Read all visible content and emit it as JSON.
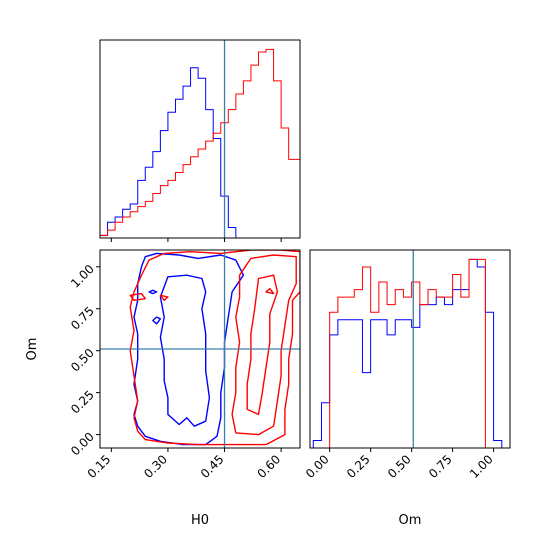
{
  "chart_data": [
    {
      "type": "histogram",
      "panel": "H0 marginal",
      "xlim": [
        0.12,
        0.65
      ],
      "truth_line": 0.45,
      "series": [
        {
          "color": "#0000ff",
          "bins": [
            0.12,
            0.14,
            0.16,
            0.18,
            0.2,
            0.22,
            0.24,
            0.26,
            0.28,
            0.3,
            0.32,
            0.34,
            0.36,
            0.38,
            0.4,
            0.42,
            0.44,
            0.46,
            0.48
          ],
          "counts": [
            1,
            6,
            8,
            11,
            13,
            22,
            27,
            33,
            41,
            48,
            53,
            58,
            65,
            61,
            49,
            38,
            16,
            4
          ]
        },
        {
          "color": "#ff0000",
          "bins": [
            0.12,
            0.14,
            0.16,
            0.18,
            0.2,
            0.22,
            0.24,
            0.26,
            0.28,
            0.3,
            0.32,
            0.34,
            0.36,
            0.38,
            0.4,
            0.42,
            0.44,
            0.46,
            0.48,
            0.5,
            0.52,
            0.54,
            0.56,
            0.58,
            0.6,
            0.62,
            0.65
          ],
          "counts": [
            1,
            3,
            6,
            8,
            10,
            12,
            14,
            17,
            20,
            22,
            25,
            28,
            31,
            34,
            37,
            40,
            44,
            49,
            55,
            60,
            66,
            71,
            72,
            60,
            42,
            30,
            12
          ]
        }
      ]
    },
    {
      "type": "contour",
      "panel": "H0 vs Om",
      "xlabel": "H0",
      "ylabel": "Om",
      "xlim": [
        0.12,
        0.65
      ],
      "ylim": [
        -0.08,
        1.1
      ],
      "xticks": [
        "0.15",
        "0.30",
        "0.45",
        "0.60"
      ],
      "yticks": [
        "0.00",
        "0.25",
        "0.50",
        "0.75",
        "1.00"
      ],
      "truth": {
        "x": 0.45,
        "y": 0.51
      },
      "series": [
        {
          "color": "#0000ff",
          "contours": [
            [
              [
                0.24,
                1.06
              ],
              [
                0.27,
                1.08
              ],
              [
                0.33,
                1.07
              ],
              [
                0.38,
                1.05
              ],
              [
                0.44,
                1.07
              ],
              [
                0.48,
                1.04
              ],
              [
                0.5,
                0.95
              ],
              [
                0.47,
                0.85
              ],
              [
                0.46,
                0.7
              ],
              [
                0.45,
                0.55
              ],
              [
                0.45,
                0.4
              ],
              [
                0.44,
                0.25
              ],
              [
                0.44,
                0.1
              ],
              [
                0.43,
                -0.01
              ],
              [
                0.4,
                -0.06
              ],
              [
                0.34,
                -0.06
              ],
              [
                0.28,
                -0.04
              ],
              [
                0.24,
                -0.01
              ],
              [
                0.22,
                0.05
              ],
              [
                0.21,
                0.12
              ],
              [
                0.22,
                0.2
              ],
              [
                0.21,
                0.3
              ],
              [
                0.22,
                0.45
              ],
              [
                0.22,
                0.6
              ],
              [
                0.21,
                0.7
              ],
              [
                0.22,
                0.8
              ],
              [
                0.22,
                0.9
              ],
              [
                0.23,
                1.0
              ],
              [
                0.24,
                1.06
              ]
            ],
            [
              [
                0.3,
                0.94
              ],
              [
                0.35,
                0.95
              ],
              [
                0.39,
                0.93
              ],
              [
                0.4,
                0.85
              ],
              [
                0.39,
                0.75
              ],
              [
                0.4,
                0.6
              ],
              [
                0.4,
                0.5
              ],
              [
                0.4,
                0.38
              ],
              [
                0.41,
                0.22
              ],
              [
                0.4,
                0.08
              ],
              [
                0.37,
                0.05
              ],
              [
                0.35,
                0.1
              ],
              [
                0.33,
                0.06
              ],
              [
                0.3,
                0.12
              ],
              [
                0.3,
                0.22
              ],
              [
                0.29,
                0.32
              ],
              [
                0.29,
                0.45
              ],
              [
                0.28,
                0.58
              ],
              [
                0.29,
                0.7
              ],
              [
                0.28,
                0.82
              ],
              [
                0.3,
                0.94
              ]
            ],
            [
              [
                0.26,
                0.68
              ],
              [
                0.27,
                0.7
              ],
              [
                0.28,
                0.69
              ],
              [
                0.27,
                0.66
              ],
              [
                0.26,
                0.68
              ]
            ],
            [
              [
                0.25,
                0.85
              ],
              [
                0.26,
                0.86
              ],
              [
                0.27,
                0.85
              ],
              [
                0.26,
                0.84
              ],
              [
                0.25,
                0.85
              ]
            ]
          ]
        },
        {
          "color": "#ff0000",
          "contours": [
            [
              [
                0.29,
                1.08
              ],
              [
                0.36,
                1.09
              ],
              [
                0.44,
                1.08
              ],
              [
                0.52,
                1.1
              ],
              [
                0.6,
                1.1
              ],
              [
                0.65,
                1.09
              ],
              [
                0.65,
                0.85
              ],
              [
                0.63,
                0.8
              ],
              [
                0.63,
                0.6
              ],
              [
                0.62,
                0.45
              ],
              [
                0.62,
                0.3
              ],
              [
                0.61,
                0.15
              ],
              [
                0.61,
                0.0
              ],
              [
                0.56,
                -0.06
              ],
              [
                0.47,
                -0.06
              ],
              [
                0.38,
                -0.06
              ],
              [
                0.3,
                -0.05
              ],
              [
                0.24,
                -0.03
              ],
              [
                0.22,
                0.02
              ],
              [
                0.21,
                0.1
              ],
              [
                0.22,
                0.2
              ],
              [
                0.21,
                0.35
              ],
              [
                0.2,
                0.5
              ],
              [
                0.21,
                0.62
              ],
              [
                0.2,
                0.76
              ],
              [
                0.21,
                0.85
              ],
              [
                0.23,
                0.95
              ],
              [
                0.25,
                1.04
              ],
              [
                0.29,
                1.08
              ]
            ],
            [
              [
                0.52,
                1.05
              ],
              [
                0.58,
                1.07
              ],
              [
                0.64,
                1.06
              ],
              [
                0.64,
                0.9
              ],
              [
                0.62,
                0.8
              ],
              [
                0.61,
                0.65
              ],
              [
                0.6,
                0.5
              ],
              [
                0.6,
                0.35
              ],
              [
                0.59,
                0.2
              ],
              [
                0.58,
                0.05
              ],
              [
                0.54,
                0.0
              ],
              [
                0.48,
                0.01
              ],
              [
                0.47,
                0.12
              ],
              [
                0.48,
                0.25
              ],
              [
                0.48,
                0.4
              ],
              [
                0.49,
                0.55
              ],
              [
                0.48,
                0.7
              ],
              [
                0.49,
                0.82
              ],
              [
                0.49,
                0.95
              ],
              [
                0.52,
                1.05
              ]
            ],
            [
              [
                0.54,
                0.93
              ],
              [
                0.58,
                0.95
              ],
              [
                0.59,
                0.85
              ],
              [
                0.57,
                0.72
              ],
              [
                0.57,
                0.55
              ],
              [
                0.56,
                0.4
              ],
              [
                0.55,
                0.25
              ],
              [
                0.54,
                0.12
              ],
              [
                0.51,
                0.15
              ],
              [
                0.51,
                0.3
              ],
              [
                0.52,
                0.45
              ],
              [
                0.52,
                0.6
              ],
              [
                0.53,
                0.75
              ],
              [
                0.54,
                0.93
              ]
            ],
            [
              [
                0.2,
                0.83
              ],
              [
                0.23,
                0.84
              ],
              [
                0.24,
                0.81
              ],
              [
                0.21,
                0.8
              ],
              [
                0.2,
                0.83
              ]
            ],
            [
              [
                0.28,
                0.83
              ],
              [
                0.3,
                0.82
              ],
              [
                0.29,
                0.8
              ],
              [
                0.28,
                0.83
              ]
            ],
            [
              [
                0.56,
                0.85
              ],
              [
                0.57,
                0.87
              ],
              [
                0.58,
                0.84
              ],
              [
                0.56,
                0.85
              ]
            ]
          ]
        }
      ]
    },
    {
      "type": "histogram",
      "panel": "Om marginal",
      "xlabel": "Om",
      "xlim": [
        -0.12,
        1.1
      ],
      "xticks": [
        "0.00",
        "0.25",
        "0.50",
        "0.75",
        "1.00"
      ],
      "truth_line": 0.51,
      "series": [
        {
          "color": "#0000ff",
          "bins": [
            -0.1,
            -0.05,
            0.0,
            0.05,
            0.1,
            0.15,
            0.2,
            0.25,
            0.3,
            0.35,
            0.4,
            0.45,
            0.5,
            0.55,
            0.6,
            0.65,
            0.7,
            0.75,
            0.8,
            0.85,
            0.9,
            0.95,
            1.0,
            1.05
          ],
          "counts": [
            1,
            6,
            15,
            17,
            17,
            17,
            10,
            17,
            17,
            15,
            17,
            17,
            16,
            19,
            19,
            20,
            19,
            21,
            21,
            25,
            24,
            18,
            1,
            0
          ]
        },
        {
          "color": "#ff0000",
          "bins": [
            0.0,
            0.05,
            0.1,
            0.15,
            0.2,
            0.25,
            0.3,
            0.35,
            0.4,
            0.45,
            0.5,
            0.55,
            0.6,
            0.65,
            0.7,
            0.75,
            0.8,
            0.85,
            0.9,
            0.95,
            1.0
          ],
          "counts": [
            18,
            20,
            20,
            21,
            24,
            18,
            22,
            19,
            21,
            20,
            22,
            19,
            21,
            20,
            20,
            23,
            20,
            25,
            25,
            0
          ]
        }
      ]
    }
  ]
}
